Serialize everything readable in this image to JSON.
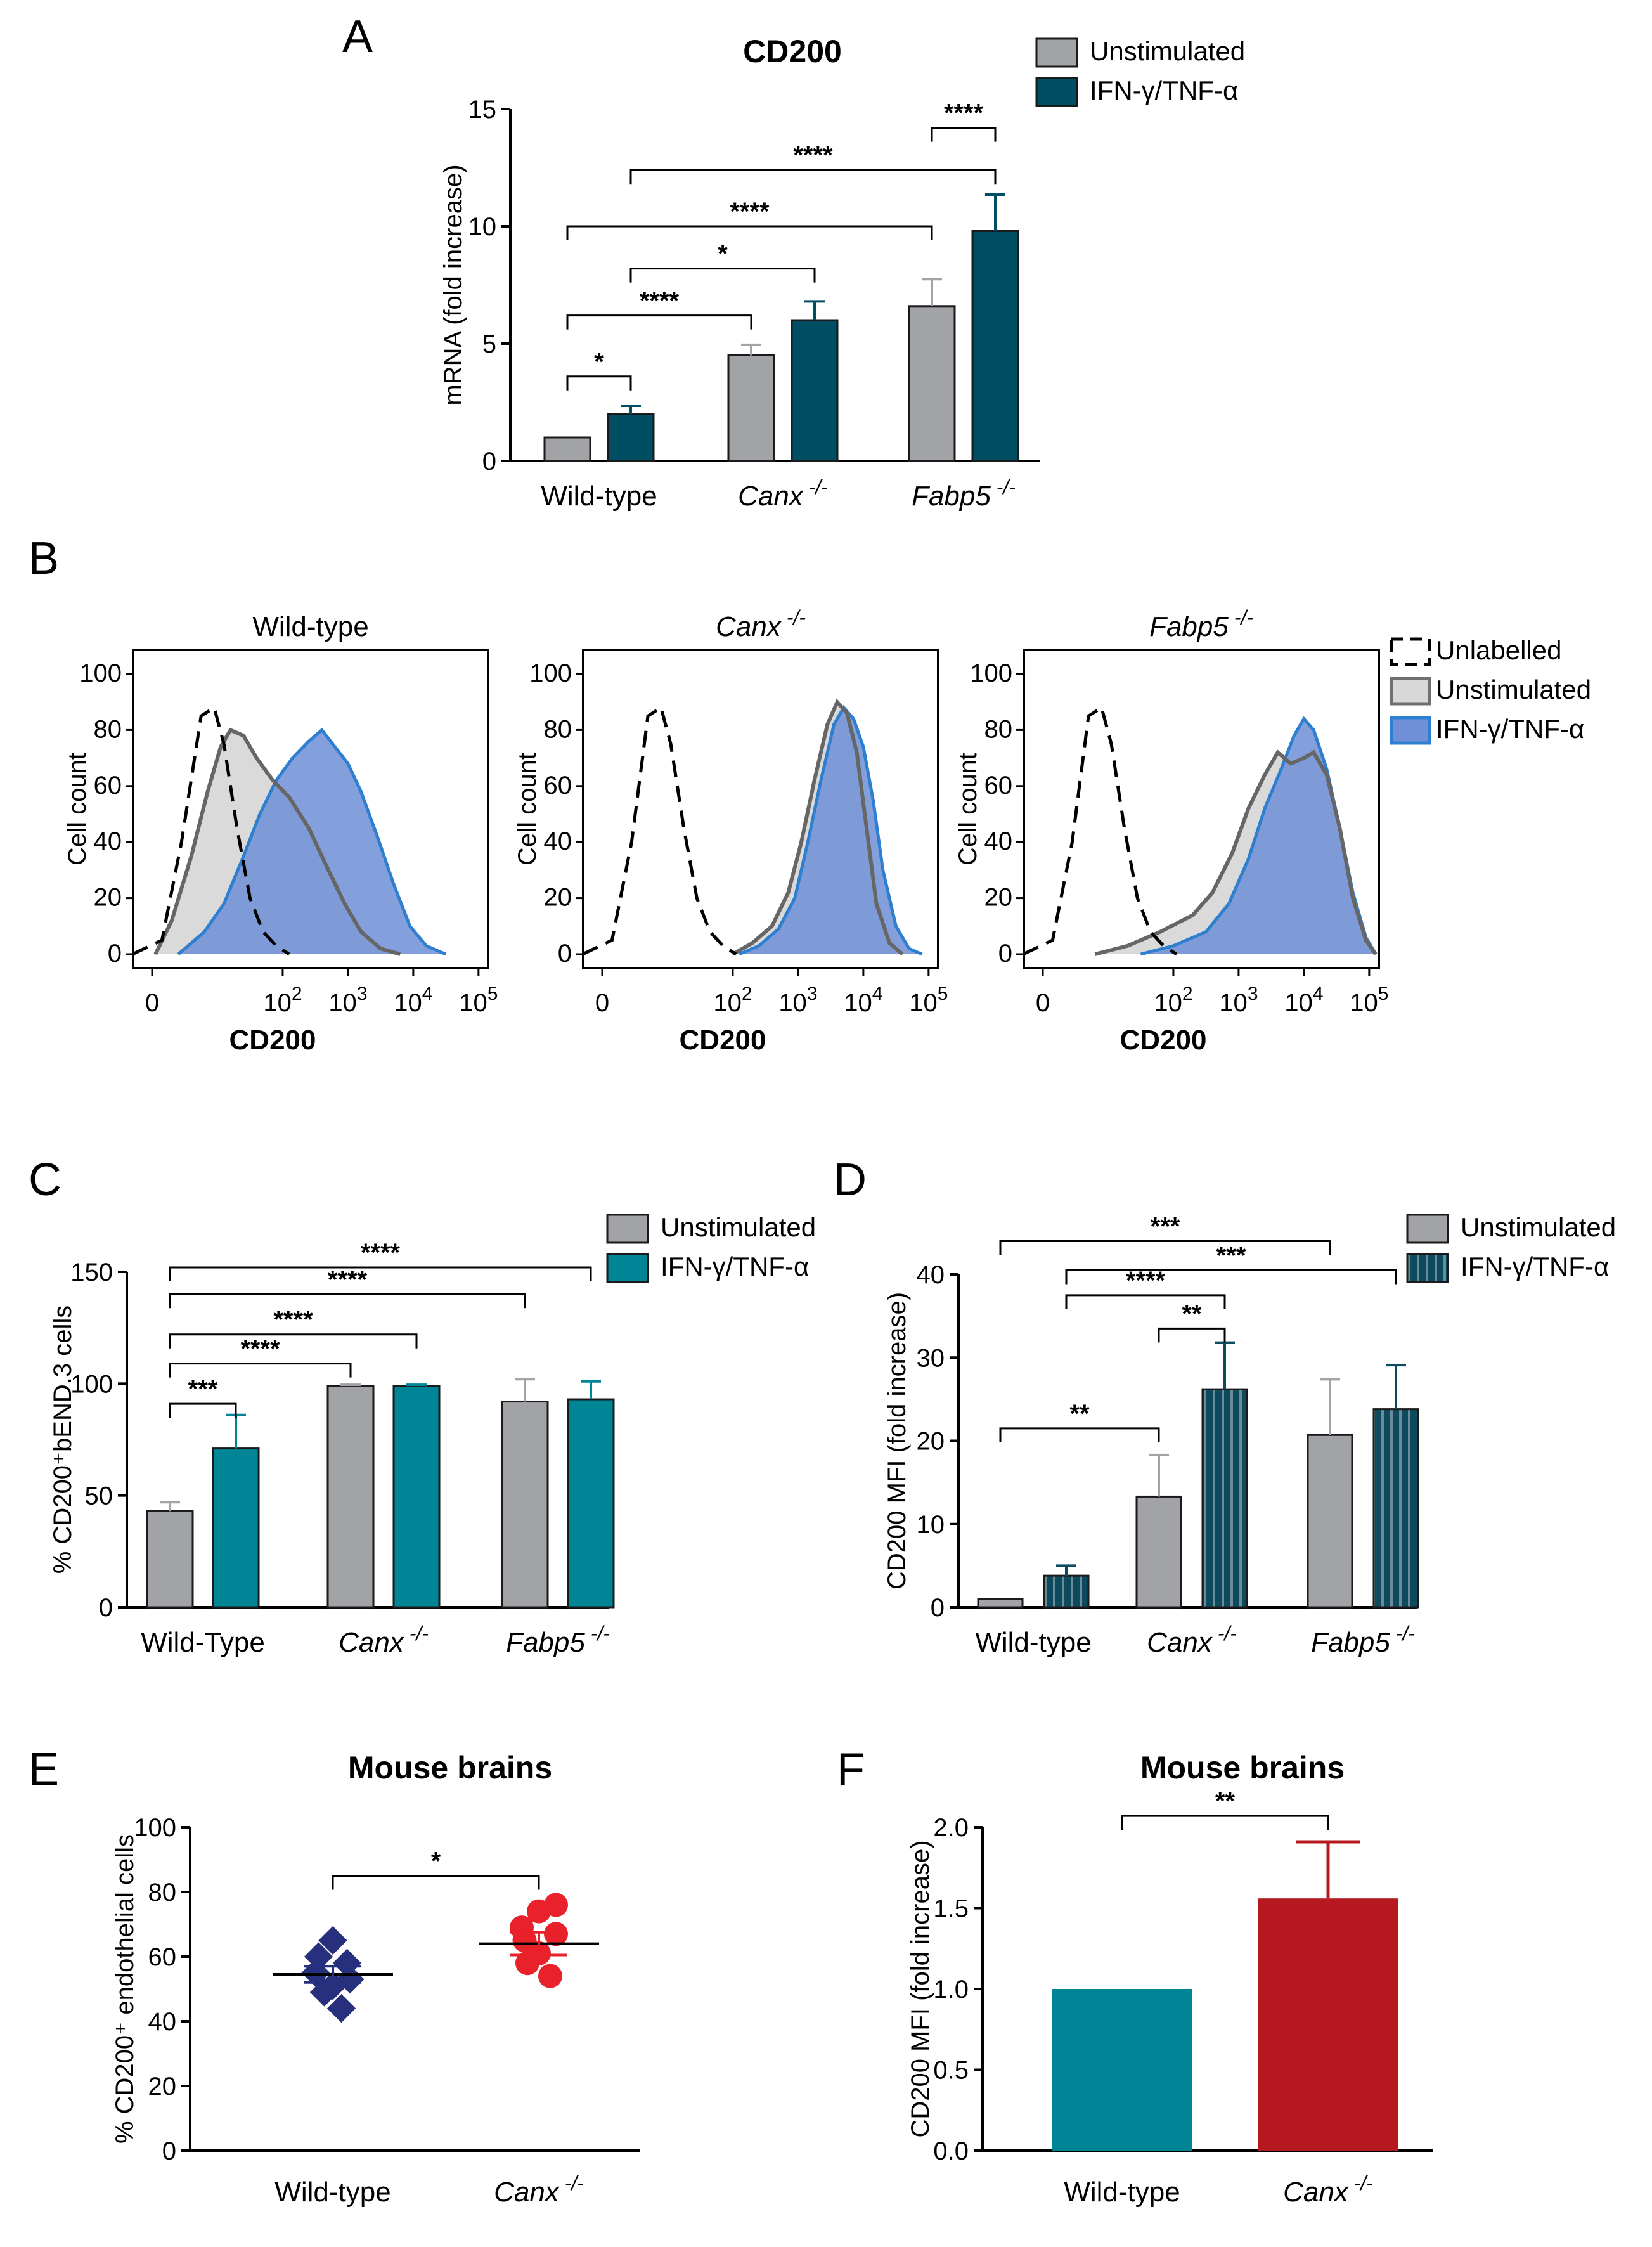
{
  "chart_data": [
    {
      "id": "A",
      "type": "bar",
      "panel_label": "A",
      "title": "CD200",
      "ylabel": "mRNA (fold increase)",
      "ylim": [
        0,
        15
      ],
      "yticks": [
        0,
        5,
        10,
        15
      ],
      "categories": [
        {
          "main": "Wild-type",
          "sup": ""
        },
        {
          "main": "Canx",
          "sup": "-/-",
          "italic": true
        },
        {
          "main": "Fabp5",
          "sup": "-/-",
          "italic": true
        }
      ],
      "series": [
        {
          "name": "Unstimulated",
          "color": "#a2a3a7",
          "values": [
            1.0,
            4.5,
            6.6
          ],
          "errors": [
            0,
            0.45,
            1.15
          ]
        },
        {
          "name": "IFN-γ/TNF-α",
          "color": "#004e63",
          "values": [
            2.0,
            6.0,
            9.8
          ],
          "errors": [
            0.35,
            0.8,
            1.55
          ]
        }
      ],
      "comparisons": [
        {
          "from": [
            0,
            0
          ],
          "to": [
            0,
            1
          ],
          "label": "*",
          "y": 3.6
        },
        {
          "from": [
            0,
            0
          ],
          "to": [
            1,
            0
          ],
          "label": "****",
          "y": 6.2
        },
        {
          "from": [
            0,
            1
          ],
          "to": [
            1,
            1
          ],
          "label": "*",
          "y": 8.2
        },
        {
          "from": [
            0,
            0
          ],
          "to": [
            2,
            0
          ],
          "label": "****",
          "y": 10.0
        },
        {
          "from": [
            0,
            1
          ],
          "to": [
            2,
            1
          ],
          "label": "****",
          "y": 12.4
        },
        {
          "from": [
            2,
            0
          ],
          "to": [
            2,
            1
          ],
          "label": "****",
          "y": 14.2
        }
      ]
    },
    {
      "id": "B",
      "type": "area",
      "panel_label": "B",
      "ylabel": "Cell count",
      "xlabel": "CD200",
      "yticks": [
        0,
        20,
        40,
        60,
        80,
        100
      ],
      "xticks": [
        {
          "base": "0",
          "exp": ""
        },
        {
          "base": "10",
          "exp": "2"
        },
        {
          "base": "10",
          "exp": "3"
        },
        {
          "base": "10",
          "exp": "4"
        },
        {
          "base": "10",
          "exp": "5"
        }
      ],
      "legend": [
        {
          "name": "Unlabelled",
          "style": "dashed"
        },
        {
          "name": "Unstimulated",
          "color": "#707070",
          "fill": "#d8d8d8"
        },
        {
          "name": "IFN-γ/TNF-α",
          "color": "#2f7fd0",
          "fill": "#6f8fd6"
        }
      ],
      "histograms": [
        {
          "title": "Wild-type",
          "italic": false,
          "sup": "",
          "unlabelled": [
            [
              -0.3,
              0
            ],
            [
              0.15,
              5
            ],
            [
              0.45,
              40
            ],
            [
              0.75,
              85
            ],
            [
              0.95,
              88
            ],
            [
              1.1,
              75
            ],
            [
              1.3,
              45
            ],
            [
              1.5,
              20
            ],
            [
              1.7,
              8
            ],
            [
              1.9,
              3
            ],
            [
              2.1,
              0
            ]
          ],
          "unstimulated": [
            [
              0.05,
              0
            ],
            [
              0.3,
              12
            ],
            [
              0.6,
              35
            ],
            [
              0.85,
              58
            ],
            [
              1.05,
              74
            ],
            [
              1.2,
              80
            ],
            [
              1.4,
              78
            ],
            [
              1.6,
              70
            ],
            [
              1.85,
              62
            ],
            [
              2.1,
              56
            ],
            [
              2.4,
              45
            ],
            [
              2.7,
              30
            ],
            [
              2.95,
              18
            ],
            [
              3.2,
              8
            ],
            [
              3.5,
              2
            ],
            [
              3.8,
              0
            ]
          ],
          "stimulated": [
            [
              0.4,
              0
            ],
            [
              0.8,
              8
            ],
            [
              1.1,
              18
            ],
            [
              1.4,
              35
            ],
            [
              1.65,
              50
            ],
            [
              1.9,
              62
            ],
            [
              2.15,
              70
            ],
            [
              2.4,
              76
            ],
            [
              2.6,
              80
            ],
            [
              2.8,
              74
            ],
            [
              3.0,
              68
            ],
            [
              3.2,
              58
            ],
            [
              3.45,
              42
            ],
            [
              3.7,
              25
            ],
            [
              3.95,
              10
            ],
            [
              4.2,
              3
            ],
            [
              4.5,
              0
            ]
          ]
        },
        {
          "title": "Canx",
          "italic": true,
          "sup": "-/-",
          "unlabelled": [
            [
              -0.3,
              0
            ],
            [
              0.15,
              5
            ],
            [
              0.45,
              40
            ],
            [
              0.7,
              85
            ],
            [
              0.9,
              88
            ],
            [
              1.05,
              75
            ],
            [
              1.25,
              45
            ],
            [
              1.45,
              20
            ],
            [
              1.65,
              8
            ],
            [
              1.85,
              3
            ],
            [
              2.05,
              0
            ]
          ],
          "unstimulated": [
            [
              2.0,
              0
            ],
            [
              2.3,
              4
            ],
            [
              2.6,
              10
            ],
            [
              2.85,
              22
            ],
            [
              3.05,
              40
            ],
            [
              3.25,
              62
            ],
            [
              3.45,
              82
            ],
            [
              3.6,
              90
            ],
            [
              3.75,
              86
            ],
            [
              3.9,
              72
            ],
            [
              4.05,
              45
            ],
            [
              4.2,
              18
            ],
            [
              4.4,
              4
            ],
            [
              4.6,
              0
            ]
          ],
          "stimulated": [
            [
              2.1,
              0
            ],
            [
              2.4,
              3
            ],
            [
              2.7,
              9
            ],
            [
              2.95,
              20
            ],
            [
              3.15,
              40
            ],
            [
              3.35,
              62
            ],
            [
              3.55,
              82
            ],
            [
              3.7,
              88
            ],
            [
              3.85,
              84
            ],
            [
              4.0,
              74
            ],
            [
              4.15,
              55
            ],
            [
              4.3,
              30
            ],
            [
              4.5,
              10
            ],
            [
              4.7,
              2
            ],
            [
              4.9,
              0
            ]
          ]
        },
        {
          "title": "Fabp5",
          "italic": true,
          "sup": "-/-",
          "unlabelled": [
            [
              -0.3,
              0
            ],
            [
              0.15,
              5
            ],
            [
              0.45,
              40
            ],
            [
              0.7,
              85
            ],
            [
              0.9,
              88
            ],
            [
              1.05,
              75
            ],
            [
              1.25,
              45
            ],
            [
              1.45,
              20
            ],
            [
              1.65,
              8
            ],
            [
              1.85,
              3
            ],
            [
              2.05,
              0
            ]
          ],
          "unstimulated": [
            [
              0.8,
              0
            ],
            [
              1.3,
              3
            ],
            [
              1.8,
              8
            ],
            [
              2.3,
              14
            ],
            [
              2.6,
              22
            ],
            [
              2.9,
              36
            ],
            [
              3.15,
              52
            ],
            [
              3.4,
              64
            ],
            [
              3.6,
              72
            ],
            [
              3.8,
              68
            ],
            [
              4.0,
              70
            ],
            [
              4.15,
              72
            ],
            [
              4.35,
              64
            ],
            [
              4.55,
              45
            ],
            [
              4.75,
              20
            ],
            [
              4.95,
              5
            ],
            [
              5.1,
              0
            ]
          ],
          "stimulated": [
            [
              1.5,
              0
            ],
            [
              2.0,
              3
            ],
            [
              2.5,
              8
            ],
            [
              2.85,
              18
            ],
            [
              3.15,
              34
            ],
            [
              3.4,
              52
            ],
            [
              3.65,
              66
            ],
            [
              3.85,
              78
            ],
            [
              4.0,
              84
            ],
            [
              4.15,
              80
            ],
            [
              4.35,
              66
            ],
            [
              4.55,
              45
            ],
            [
              4.75,
              22
            ],
            [
              4.95,
              6
            ],
            [
              5.1,
              0
            ]
          ]
        }
      ]
    },
    {
      "id": "C",
      "type": "bar",
      "panel_label": "C",
      "ylabel": "% CD200⁺bEND.3 cells",
      "ylim": [
        0,
        150
      ],
      "yticks": [
        0,
        50,
        100,
        150
      ],
      "categories": [
        {
          "main": "Wild-Type",
          "sup": ""
        },
        {
          "main": "Canx",
          "sup": "-/-",
          "italic": true
        },
        {
          "main": "Fabp5",
          "sup": "-/-",
          "italic": true
        }
      ],
      "series": [
        {
          "name": "Unstimulated",
          "color": "#a2a3a7",
          "values": [
            43,
            99,
            92
          ],
          "errors": [
            4,
            0.5,
            10
          ]
        },
        {
          "name": "IFN-γ/TNF-α",
          "color": "#008596",
          "values": [
            71,
            99,
            93
          ],
          "errors": [
            15,
            0.5,
            8
          ]
        }
      ],
      "comparisons": [
        {
          "from": [
            0,
            0
          ],
          "to": [
            0,
            1
          ],
          "label": "***",
          "y": 91
        },
        {
          "from": [
            0,
            0
          ],
          "to": [
            1,
            0
          ],
          "label": "****",
          "y": 109
        },
        {
          "from": [
            0,
            0
          ],
          "to": [
            1,
            1
          ],
          "label": "****",
          "y": 122
        },
        {
          "from": [
            0,
            0
          ],
          "to": [
            2,
            0
          ],
          "label": "****",
          "y": 140
        },
        {
          "from": [
            0,
            0
          ],
          "to": [
            2,
            1
          ],
          "label": "****",
          "y": 152
        }
      ]
    },
    {
      "id": "D",
      "type": "bar",
      "panel_label": "D",
      "ylabel": "CD200 MFI (fold increase)",
      "ylim": [
        0,
        40
      ],
      "yticks": [
        0,
        10,
        20,
        30,
        40
      ],
      "categories": [
        {
          "main": "Wild-type",
          "sup": ""
        },
        {
          "main": "Canx",
          "sup": "-/-",
          "italic": true
        },
        {
          "main": "Fabp5",
          "sup": "-/-",
          "italic": true
        }
      ],
      "series": [
        {
          "name": "Unstimulated",
          "color": "#a2a3a7",
          "values": [
            1.0,
            13.3,
            20.7
          ],
          "errors": [
            0,
            5.0,
            6.7
          ]
        },
        {
          "name": "IFN-γ/TNF-α",
          "color": "#0e4a5e",
          "striped": true,
          "values": [
            3.8,
            26.2,
            23.8
          ],
          "errors": [
            1.2,
            5.6,
            5.3
          ]
        }
      ],
      "comparisons": [
        {
          "from": [
            0,
            0
          ],
          "to": [
            1,
            0
          ],
          "label": "**",
          "y": 21.5
        },
        {
          "from": [
            1,
            0
          ],
          "to": [
            1,
            1
          ],
          "label": "**",
          "y": 33.5
        },
        {
          "from": [
            0,
            1
          ],
          "to": [
            1,
            1
          ],
          "label": "****",
          "y": 37.5
        },
        {
          "from": [
            0,
            1
          ],
          "to": [
            2,
            1
          ],
          "label": "***",
          "y": 40.5
        },
        {
          "from": [
            0,
            0
          ],
          "to": [
            2,
            0
          ],
          "label": "***",
          "y": 44
        }
      ]
    },
    {
      "id": "E",
      "type": "scatter",
      "panel_label": "E",
      "title": "Mouse brains",
      "ylabel": "% CD200⁺ endothelial cells",
      "ylim": [
        0,
        100
      ],
      "yticks": [
        0,
        20,
        40,
        60,
        80,
        100
      ],
      "categories": [
        {
          "main": "Wild-type",
          "sup": ""
        },
        {
          "main": "Canx",
          "sup": "-/-",
          "italic": true
        }
      ],
      "groups": [
        {
          "name": "Wild-type",
          "marker": "square",
          "color": "#27307c",
          "values": [
            65,
            60,
            58,
            55,
            53,
            51,
            49,
            44
          ],
          "jitter": [
            0,
            -0.25,
            0.25,
            -0.3,
            0.3,
            0,
            -0.15,
            0.15
          ],
          "mean": 54.5,
          "sem": 2.5
        },
        {
          "name": "Canx -/-",
          "marker": "circle",
          "color": "#e8212b",
          "values": [
            76,
            74,
            69,
            67,
            65,
            61,
            58,
            54
          ],
          "jitter": [
            0.3,
            0,
            -0.3,
            0.3,
            -0.25,
            0,
            -0.2,
            0.2
          ],
          "mean": 64,
          "sem": 3.5
        }
      ],
      "comparisons": [
        {
          "from": 0,
          "to": 1,
          "label": "*",
          "y": 85
        }
      ]
    },
    {
      "id": "F",
      "type": "bar",
      "panel_label": "F",
      "title": "Mouse brains",
      "ylabel": "CD200 MFI (fold increase)",
      "ylim": [
        0,
        2.0
      ],
      "yticks": [
        0.0,
        0.5,
        1.0,
        1.5,
        2.0
      ],
      "categories": [
        {
          "main": "Wild-type",
          "sup": ""
        },
        {
          "main": "Canx",
          "sup": "-/-",
          "italic": true
        }
      ],
      "bars": [
        {
          "value": 1.0,
          "error": 0,
          "color": "#008596"
        },
        {
          "value": 1.56,
          "error": 0.35,
          "color": "#b5181e"
        }
      ],
      "comparisons": [
        {
          "from": 0,
          "to": 1,
          "label": "**",
          "y": 2.07
        }
      ]
    }
  ]
}
